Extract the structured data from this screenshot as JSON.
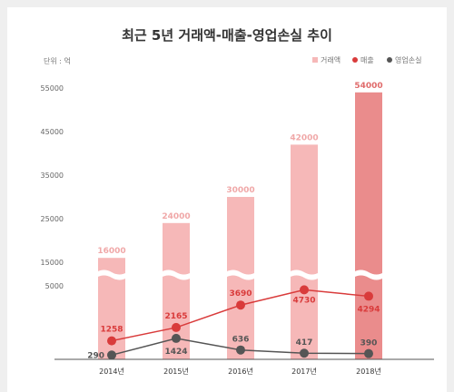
{
  "chart_data": {
    "type": "bar",
    "title": "최근 5년 거래액-매출-영업손실 추이",
    "unit_label": "단위 : 억",
    "categories": [
      "2014년",
      "2015년",
      "2016년",
      "2017년",
      "2018년"
    ],
    "y_ticks_upper": [
      55000,
      45000,
      35000,
      25000,
      15000
    ],
    "y_ticks_lower": [
      5000
    ],
    "ylim_upper": [
      15000,
      55000
    ],
    "ylim_lower": [
      0,
      5000
    ],
    "axis_break": true,
    "grid": false,
    "legend_position": "top-right",
    "series": [
      {
        "name": "거래액",
        "kind": "bar",
        "values": [
          16000,
          24000,
          30000,
          42000,
          54000
        ],
        "labels": [
          "16000",
          "24000",
          "30000",
          "42000",
          "54000"
        ],
        "color": "#f6b8b8",
        "highlight_color": "#ea8c8c",
        "label_color": "#f0a8a8",
        "highlight_label_color": "#e06b6b"
      },
      {
        "name": "매출",
        "kind": "line",
        "values": [
          1258,
          2165,
          3690,
          4730,
          4294
        ],
        "labels": [
          "1258",
          "2165",
          "3690",
          "4730",
          "4294"
        ],
        "color": "#d93b3b"
      },
      {
        "name": "영업손실",
        "kind": "line",
        "values": [
          290,
          1424,
          636,
          417,
          390
        ],
        "labels": [
          "290",
          "1424",
          "636",
          "417",
          "390"
        ],
        "color": "#555555"
      }
    ]
  }
}
